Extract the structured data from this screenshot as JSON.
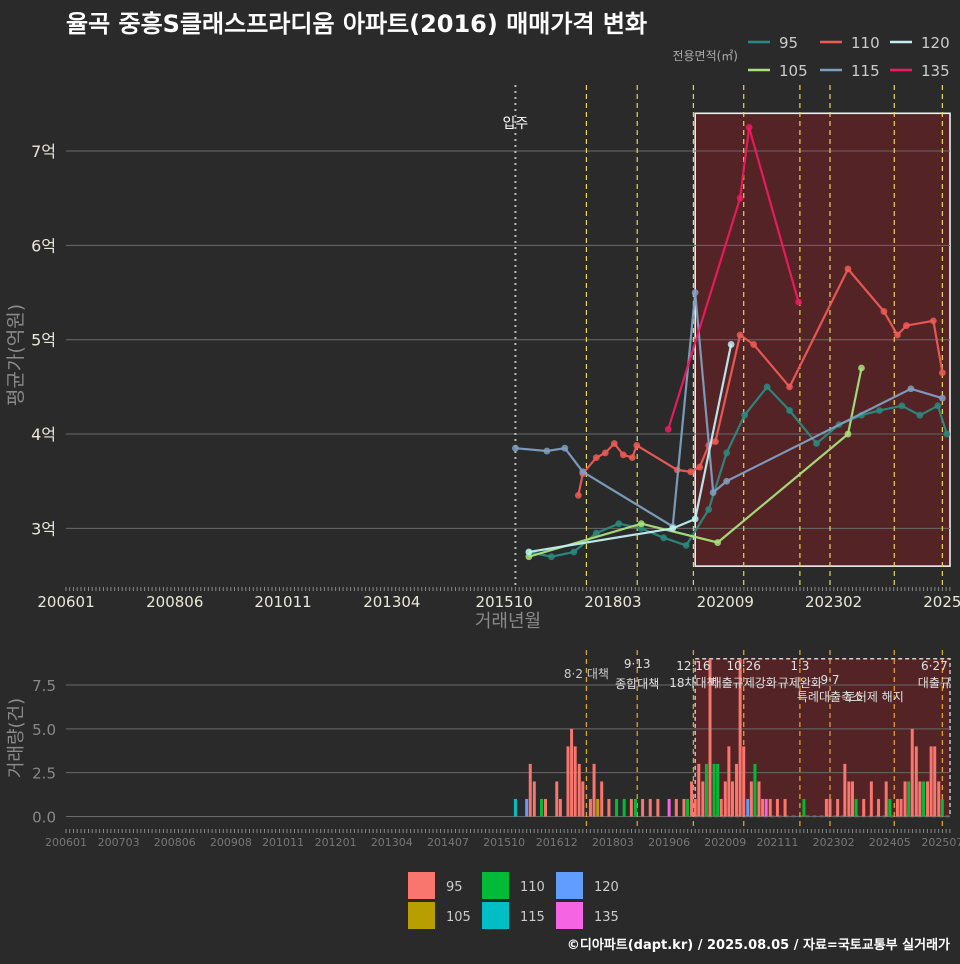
{
  "title": "율곡 중흥S클래스프라디움 아파트(2016) 매매가격 변화",
  "footer": "©디아파트(dapt.kr) / 2025.08.05 / 자료=국토교통부 실거래가",
  "colors": {
    "background": "#2a2a2b",
    "grid": "#6a6a6a",
    "highlight_fill": "#5a2226",
    "policy_line": "#e8d84a",
    "policy_line_bottom": "#e0a020",
    "s95": "#2a8a80",
    "s105": "#a8e07a",
    "s110": "#ee5a55",
    "s115": "#7f9fc0",
    "s120": "#c0f0f0",
    "s135": "#ee1a60",
    "b95": "#f8766d",
    "b105": "#b79f00",
    "b110": "#00ba38",
    "b115": "#00bfc4",
    "b120": "#619cff",
    "b135": "#f564e3"
  },
  "chart_data": [
    {
      "type": "line",
      "title": "율곡 중흥S클래스프라디움 아파트(2016) 매매가격 변화",
      "xlabel": "거래년월",
      "ylabel": "평균가(억원)",
      "xlim": [
        2006.0,
        2025.67
      ],
      "ylim": [
        2.4,
        7.7
      ],
      "x_ticks": [
        {
          "x": 2006.0,
          "label": "200601"
        },
        {
          "x": 2008.42,
          "label": "200806"
        },
        {
          "x": 2010.83,
          "label": "201011"
        },
        {
          "x": 2013.25,
          "label": "201304"
        },
        {
          "x": 2015.75,
          "label": "201510"
        },
        {
          "x": 2018.17,
          "label": "201803"
        },
        {
          "x": 2020.67,
          "label": "202009"
        },
        {
          "x": 2023.08,
          "label": "202302"
        },
        {
          "x": 2025.5,
          "label": "2025"
        }
      ],
      "y_ticks": [
        {
          "y": 3,
          "label": "3억"
        },
        {
          "y": 4,
          "label": "4억"
        },
        {
          "y": 5,
          "label": "5억"
        },
        {
          "y": 6,
          "label": "6억"
        },
        {
          "y": 7,
          "label": "7억"
        }
      ],
      "legend_title": "전용면적(㎡)",
      "move_in": {
        "x": 2016.0,
        "label": "입주"
      },
      "policy_lines": [
        2017.58,
        2018.71,
        2019.96,
        2021.08,
        2022.33,
        2023.0,
        2024.43,
        2025.5
      ],
      "highlight_range": {
        "x0": 2020.0,
        "x1": 2025.67,
        "y0": 2.6,
        "y1": 7.4
      },
      "series": [
        {
          "name": "95",
          "color_key": "s95",
          "points": [
            [
              2016.3,
              2.75
            ],
            [
              2016.8,
              2.7
            ],
            [
              2017.3,
              2.75
            ],
            [
              2017.8,
              2.95
            ],
            [
              2018.3,
              3.05
            ],
            [
              2018.8,
              3.0
            ],
            [
              2019.3,
              2.9
            ],
            [
              2019.8,
              2.82
            ],
            [
              2020.3,
              3.2
            ],
            [
              2020.7,
              3.8
            ],
            [
              2021.1,
              4.2
            ],
            [
              2021.6,
              4.5
            ],
            [
              2022.1,
              4.25
            ],
            [
              2022.7,
              3.9
            ],
            [
              2023.2,
              4.1
            ],
            [
              2023.7,
              4.2
            ],
            [
              2024.1,
              4.25
            ],
            [
              2024.6,
              4.3
            ],
            [
              2025.0,
              4.2
            ],
            [
              2025.4,
              4.3
            ],
            [
              2025.6,
              4.0
            ]
          ]
        },
        {
          "name": "105",
          "color_key": "s105",
          "points": [
            [
              2016.3,
              2.7
            ],
            [
              2018.8,
              3.05
            ],
            [
              2020.5,
              2.85
            ],
            [
              2023.4,
              4.0
            ],
            [
              2023.7,
              4.7
            ]
          ]
        },
        {
          "name": "110",
          "color_key": "s110",
          "points": [
            [
              2017.4,
              3.35
            ],
            [
              2017.5,
              3.58
            ],
            [
              2017.8,
              3.75
            ],
            [
              2018.0,
              3.8
            ],
            [
              2018.2,
              3.9
            ],
            [
              2018.4,
              3.78
            ],
            [
              2018.6,
              3.75
            ],
            [
              2018.7,
              3.88
            ],
            [
              2019.6,
              3.62
            ],
            [
              2019.9,
              3.6
            ],
            [
              2020.1,
              3.65
            ],
            [
              2020.3,
              3.88
            ],
            [
              2020.45,
              3.92
            ],
            [
              2021.0,
              5.05
            ],
            [
              2021.3,
              4.95
            ],
            [
              2022.1,
              4.5
            ],
            [
              2023.4,
              5.75
            ],
            [
              2024.2,
              5.3
            ],
            [
              2024.5,
              5.05
            ],
            [
              2024.7,
              5.15
            ],
            [
              2025.3,
              5.2
            ],
            [
              2025.5,
              4.65
            ]
          ]
        },
        {
          "name": "115",
          "color_key": "s115",
          "points": [
            [
              2016.0,
              3.85
            ],
            [
              2016.7,
              3.82
            ],
            [
              2017.1,
              3.85
            ],
            [
              2017.5,
              3.6
            ],
            [
              2019.5,
              3.02
            ],
            [
              2020.0,
              5.5
            ],
            [
              2020.4,
              3.38
            ],
            [
              2020.7,
              3.5
            ],
            [
              2024.8,
              4.48
            ],
            [
              2025.5,
              4.38
            ]
          ]
        },
        {
          "name": "120",
          "color_key": "s120",
          "points": [
            [
              2016.3,
              2.75
            ],
            [
              2019.5,
              3.0
            ],
            [
              2020.0,
              3.1
            ],
            [
              2020.8,
              4.95
            ]
          ]
        },
        {
          "name": "135",
          "color_key": "s135",
          "points": [
            [
              2019.4,
              4.05
            ],
            [
              2021.0,
              6.5
            ],
            [
              2021.2,
              7.25
            ],
            [
              2022.3,
              5.4
            ]
          ]
        }
      ]
    },
    {
      "type": "bar",
      "ylabel": "거래량(건)",
      "xlim": [
        2006.0,
        2025.67
      ],
      "ylim": [
        -0.6,
        9.5
      ],
      "y_ticks": [
        {
          "y": 0.0,
          "label": "0.0"
        },
        {
          "y": 2.5,
          "label": "2.5"
        },
        {
          "y": 5.0,
          "label": "5.0"
        },
        {
          "y": 7.5,
          "label": "7.5"
        }
      ],
      "x_ticks": [
        {
          "x": 2006.0,
          "label": "200601"
        },
        {
          "x": 2007.17,
          "label": "200703"
        },
        {
          "x": 2008.42,
          "label": "200806"
        },
        {
          "x": 2009.67,
          "label": "200908"
        },
        {
          "x": 2010.83,
          "label": "201011"
        },
        {
          "x": 2012.0,
          "label": "201201"
        },
        {
          "x": 2013.25,
          "label": "201304"
        },
        {
          "x": 2014.5,
          "label": "201407"
        },
        {
          "x": 2015.75,
          "label": "201510"
        },
        {
          "x": 2016.92,
          "label": "201612"
        },
        {
          "x": 2018.17,
          "label": "201803"
        },
        {
          "x": 2019.42,
          "label": "201906"
        },
        {
          "x": 2020.67,
          "label": "202009"
        },
        {
          "x": 2021.83,
          "label": "202111"
        },
        {
          "x": 2023.08,
          "label": "202302"
        },
        {
          "x": 2024.33,
          "label": "202405"
        },
        {
          "x": 2025.5,
          "label": "202507"
        }
      ],
      "highlight_range": {
        "x0": 2020.0,
        "x1": 2025.67,
        "y0": 0,
        "y1": 9.0
      },
      "policy_annotations": [
        {
          "x": 2017.58,
          "date": "8·2",
          "text": "대책"
        },
        {
          "x": 2018.71,
          "date": "9·13",
          "text": "종합대책"
        },
        {
          "x": 2019.96,
          "date": "12·16",
          "text": "18차대책"
        },
        {
          "x": 2021.08,
          "date": "10·26",
          "text": "대출규제강화"
        },
        {
          "x": 2022.33,
          "date": "1·3",
          "text": "규제완화"
        },
        {
          "x": 2023.0,
          "date": "9·7",
          "text": "특례대출축소"
        },
        {
          "x": 2024.43,
          "date": "",
          "text": "토허제 해지"
        },
        {
          "x": 2025.5,
          "date": "6·27",
          "text": "대출규"
        }
      ],
      "legend": [
        "95",
        "105",
        "110",
        "115",
        "120",
        "135"
      ],
      "bars": [
        {
          "x": 2016.0,
          "v": 1,
          "s": "115"
        },
        {
          "x": 2016.25,
          "v": 1,
          "s": "120"
        },
        {
          "x": 2016.33,
          "v": 3,
          "s": "95"
        },
        {
          "x": 2016.42,
          "v": 2,
          "s": "95"
        },
        {
          "x": 2016.58,
          "v": 1,
          "s": "110"
        },
        {
          "x": 2016.67,
          "v": 1,
          "s": "95"
        },
        {
          "x": 2016.92,
          "v": 2,
          "s": "95"
        },
        {
          "x": 2017.0,
          "v": 1,
          "s": "95"
        },
        {
          "x": 2017.17,
          "v": 4,
          "s": "95"
        },
        {
          "x": 2017.25,
          "v": 5,
          "s": "95"
        },
        {
          "x": 2017.33,
          "v": 4,
          "s": "95"
        },
        {
          "x": 2017.42,
          "v": 3,
          "s": "95"
        },
        {
          "x": 2017.5,
          "v": 2,
          "s": "95"
        },
        {
          "x": 2017.67,
          "v": 1,
          "s": "95"
        },
        {
          "x": 2017.75,
          "v": 3,
          "s": "95"
        },
        {
          "x": 2017.83,
          "v": 1,
          "s": "105"
        },
        {
          "x": 2017.92,
          "v": 2,
          "s": "95"
        },
        {
          "x": 2018.08,
          "v": 1,
          "s": "95"
        },
        {
          "x": 2018.25,
          "v": 1,
          "s": "110"
        },
        {
          "x": 2018.42,
          "v": 1,
          "s": "110"
        },
        {
          "x": 2018.58,
          "v": 1,
          "s": "95"
        },
        {
          "x": 2018.67,
          "v": 1,
          "s": "110"
        },
        {
          "x": 2018.83,
          "v": 1,
          "s": "95"
        },
        {
          "x": 2019.0,
          "v": 1,
          "s": "95"
        },
        {
          "x": 2019.17,
          "v": 1,
          "s": "95"
        },
        {
          "x": 2019.42,
          "v": 1,
          "s": "135"
        },
        {
          "x": 2019.58,
          "v": 1,
          "s": "95"
        },
        {
          "x": 2019.75,
          "v": 1,
          "s": "95"
        },
        {
          "x": 2019.83,
          "v": 1,
          "s": "110"
        },
        {
          "x": 2019.92,
          "v": 2,
          "s": "95"
        },
        {
          "x": 2020.0,
          "v": 1,
          "s": "95"
        },
        {
          "x": 2020.08,
          "v": 3,
          "s": "95"
        },
        {
          "x": 2020.17,
          "v": 2,
          "s": "95"
        },
        {
          "x": 2020.25,
          "v": 3,
          "s": "110"
        },
        {
          "x": 2020.33,
          "v": 9,
          "s": "95"
        },
        {
          "x": 2020.42,
          "v": 3,
          "s": "110"
        },
        {
          "x": 2020.5,
          "v": 3,
          "s": "110"
        },
        {
          "x": 2020.58,
          "v": 1,
          "s": "95"
        },
        {
          "x": 2020.67,
          "v": 2,
          "s": "95"
        },
        {
          "x": 2020.75,
          "v": 4,
          "s": "95"
        },
        {
          "x": 2020.83,
          "v": 2,
          "s": "95"
        },
        {
          "x": 2020.92,
          "v": 3,
          "s": "95"
        },
        {
          "x": 2021.0,
          "v": 9,
          "s": "95"
        },
        {
          "x": 2021.08,
          "v": 4,
          "s": "95"
        },
        {
          "x": 2021.17,
          "v": 1,
          "s": "120"
        },
        {
          "x": 2021.25,
          "v": 2,
          "s": "95"
        },
        {
          "x": 2021.33,
          "v": 3,
          "s": "110"
        },
        {
          "x": 2021.42,
          "v": 2,
          "s": "95"
        },
        {
          "x": 2021.5,
          "v": 1,
          "s": "95"
        },
        {
          "x": 2021.58,
          "v": 1,
          "s": "135"
        },
        {
          "x": 2021.67,
          "v": 1,
          "s": "95"
        },
        {
          "x": 2021.83,
          "v": 1,
          "s": "95"
        },
        {
          "x": 2022.0,
          "v": 1,
          "s": "95"
        },
        {
          "x": 2022.42,
          "v": 1,
          "s": "110"
        },
        {
          "x": 2022.92,
          "v": 1,
          "s": "95"
        },
        {
          "x": 2023.0,
          "v": 1,
          "s": "95"
        },
        {
          "x": 2023.17,
          "v": 1,
          "s": "95"
        },
        {
          "x": 2023.33,
          "v": 3,
          "s": "95"
        },
        {
          "x": 2023.42,
          "v": 2,
          "s": "95"
        },
        {
          "x": 2023.5,
          "v": 2,
          "s": "95"
        },
        {
          "x": 2023.58,
          "v": 1,
          "s": "110"
        },
        {
          "x": 2023.75,
          "v": 1,
          "s": "95"
        },
        {
          "x": 2023.92,
          "v": 2,
          "s": "95"
        },
        {
          "x": 2024.08,
          "v": 1,
          "s": "95"
        },
        {
          "x": 2024.25,
          "v": 2,
          "s": "95"
        },
        {
          "x": 2024.33,
          "v": 1,
          "s": "110"
        },
        {
          "x": 2024.5,
          "v": 1,
          "s": "95"
        },
        {
          "x": 2024.58,
          "v": 1,
          "s": "95"
        },
        {
          "x": 2024.67,
          "v": 2,
          "s": "95"
        },
        {
          "x": 2024.75,
          "v": 2,
          "s": "110"
        },
        {
          "x": 2024.83,
          "v": 5,
          "s": "95"
        },
        {
          "x": 2024.92,
          "v": 4,
          "s": "95"
        },
        {
          "x": 2025.0,
          "v": 2,
          "s": "95"
        },
        {
          "x": 2025.08,
          "v": 2,
          "s": "110"
        },
        {
          "x": 2025.17,
          "v": 2,
          "s": "95"
        },
        {
          "x": 2025.25,
          "v": 4,
          "s": "95"
        },
        {
          "x": 2025.33,
          "v": 4,
          "s": "95"
        },
        {
          "x": 2025.42,
          "v": 2,
          "s": "95"
        },
        {
          "x": 2025.5,
          "v": 1,
          "s": "110"
        }
      ]
    }
  ]
}
